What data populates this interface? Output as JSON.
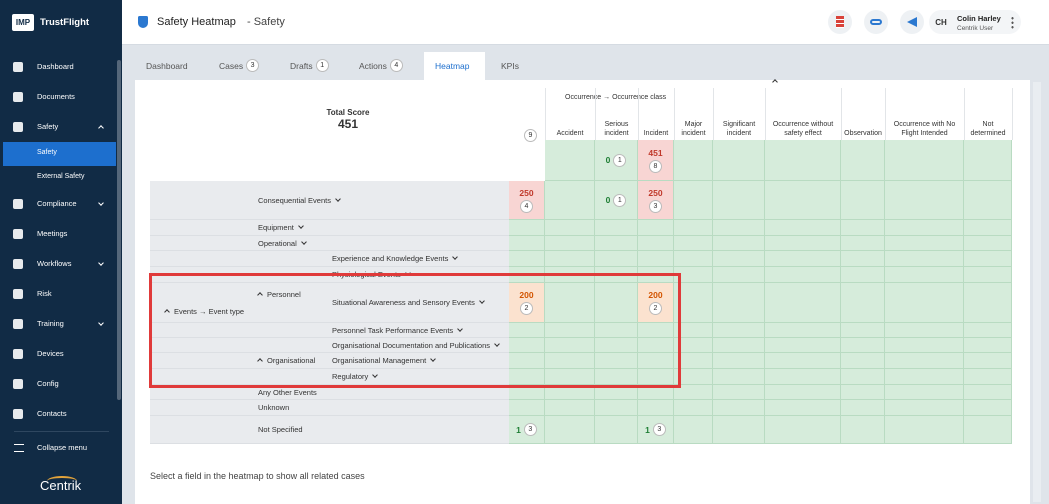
{
  "sidebar": {
    "logo": "IMP",
    "brand": "TrustFlight",
    "nav": [
      {
        "label": "Dashboard"
      },
      {
        "label": "Documents"
      },
      {
        "label": "Safety",
        "expanded": true,
        "children": [
          {
            "label": "Safety",
            "active": true
          },
          {
            "label": "External Safety"
          }
        ]
      },
      {
        "label": "Compliance",
        "expandable": true
      },
      {
        "label": "Meetings"
      },
      {
        "label": "Workflows",
        "expandable": true
      },
      {
        "label": "Risk"
      },
      {
        "label": "Training",
        "expandable": true
      },
      {
        "label": "Devices"
      },
      {
        "label": "Config"
      },
      {
        "label": "Contacts"
      }
    ],
    "collapse": "Collapse menu",
    "footer": "Centrik"
  },
  "header": {
    "title": "Safety Heatmap",
    "subtitle": "- Safety",
    "user": {
      "initials": "CH",
      "name": "Colin Harley",
      "role": "Centrik User"
    }
  },
  "tabs": [
    {
      "label": "Dashboard"
    },
    {
      "label": "Cases",
      "count": 3
    },
    {
      "label": "Drafts",
      "count": 1
    },
    {
      "label": "Actions",
      "count": 4
    },
    {
      "label": "Heatmap",
      "active": true
    },
    {
      "label": "KPIs"
    }
  ],
  "heatmap": {
    "total_label": "Total Score",
    "total": 451,
    "header_badge": 9,
    "column_axis": "Occurrence → Occurrence class",
    "columns": [
      "Accident",
      "Serious incident",
      "Incident",
      "Major incident",
      "Significant incident",
      "Occurrence without safety effect",
      "Observation",
      "Occurrence with No Flight Intended",
      "Not determined"
    ],
    "column_totals": {
      "1": {
        "score": 0,
        "count": 1,
        "tone": "green"
      },
      "2": {
        "score": 451,
        "count": 8,
        "tone": "red"
      }
    },
    "row_axis": "Events → Event type",
    "rows": [
      {
        "label": "Consequential Events",
        "level": 1,
        "expandable": true,
        "total": {
          "score": 250,
          "count": 4,
          "tone": "red"
        },
        "cells": {
          "1": {
            "score": 0,
            "count": 1,
            "tone": "green"
          },
          "2": {
            "score": 250,
            "count": 3,
            "tone": "red"
          }
        }
      },
      {
        "label": "Equipment",
        "level": 1,
        "expandable": true
      },
      {
        "label": "Operational",
        "level": 1,
        "expandable": true
      },
      {
        "label": "Experience and Knowledge Events",
        "level": 2,
        "expandable": true
      },
      {
        "label": "Physiological Events",
        "level": 2,
        "expandable": true
      },
      {
        "label": "Situational Awareness and Sensory Events",
        "level": 2,
        "expandable": true,
        "group": "Personnel",
        "total": {
          "score": 200,
          "count": 2,
          "tone": "orange"
        },
        "cells": {
          "2": {
            "score": 200,
            "count": 2,
            "tone": "orange"
          }
        }
      },
      {
        "label": "Personnel Task Performance Events",
        "level": 2,
        "expandable": true
      },
      {
        "label": "Organisational Documentation and Publications",
        "level": 2,
        "expandable": true
      },
      {
        "label": "Organisational Management",
        "level": 2,
        "expandable": true,
        "group": "Organisational"
      },
      {
        "label": "Regulatory",
        "level": 2,
        "expandable": true
      },
      {
        "label": "Any Other Events",
        "level": 1
      },
      {
        "label": "Unknown",
        "level": 1
      },
      {
        "label": "Not Specified",
        "level": 1,
        "total": {
          "score": 1,
          "count": 3,
          "tone": "green"
        },
        "cells": {
          "2": {
            "score": 1,
            "count": 3,
            "tone": "green"
          }
        }
      }
    ]
  },
  "hint": "Select a field in the heatmap to show all related cases"
}
